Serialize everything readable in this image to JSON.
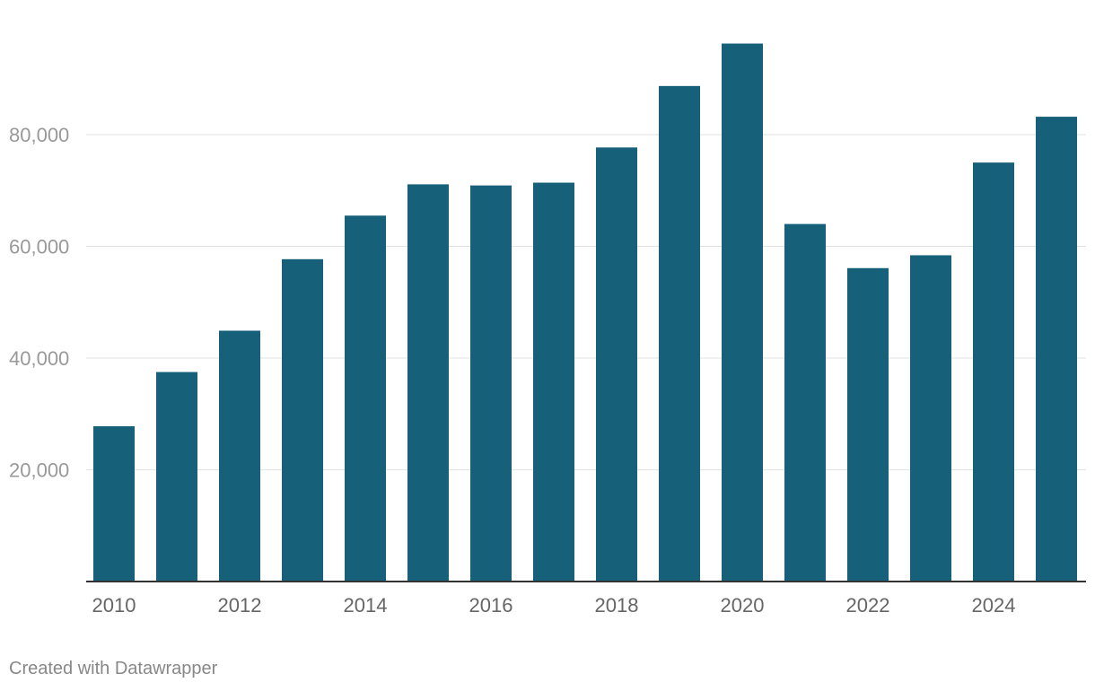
{
  "chart_data": {
    "type": "bar",
    "categories": [
      "2010",
      "2011",
      "2012",
      "2013",
      "2014",
      "2015",
      "2016",
      "2017",
      "2018",
      "2019",
      "2020",
      "2021",
      "2022",
      "2023",
      "2024",
      "2025"
    ],
    "values": [
      27800,
      37500,
      44900,
      57700,
      65500,
      71100,
      70900,
      71400,
      77700,
      88700,
      96300,
      64000,
      56100,
      58400,
      75000,
      83200
    ],
    "x_tick_labels": [
      "2010",
      "2012",
      "2014",
      "2016",
      "2018",
      "2020",
      "2022",
      "2024"
    ],
    "y_ticks": [
      20000,
      40000,
      60000,
      80000
    ],
    "y_tick_labels": [
      "20,000",
      "40,000",
      "60,000",
      "80,000"
    ],
    "ylim": [
      0,
      100000
    ],
    "grid": true,
    "bar_color": "#17607a",
    "title": "",
    "xlabel": "",
    "ylabel": ""
  },
  "footer": {
    "credit": "Created with Datawrapper"
  }
}
